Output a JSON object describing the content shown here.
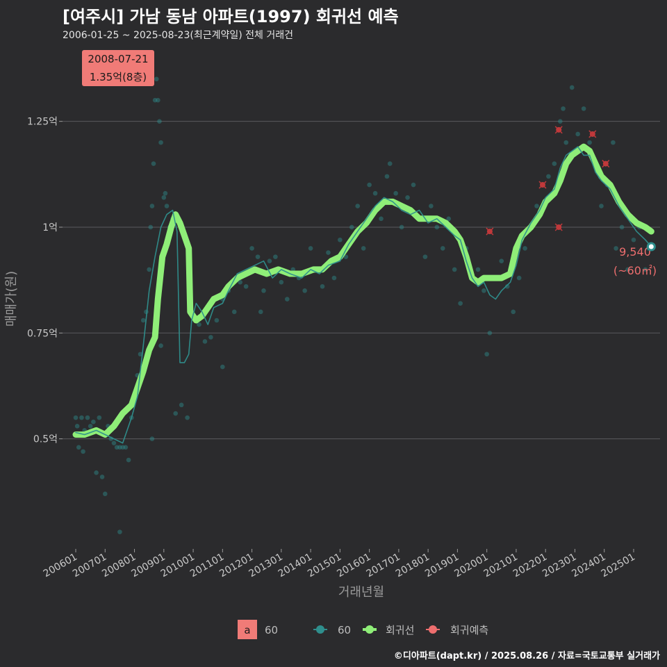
{
  "chart_data": {
    "type": "scatter",
    "title": "[여주시] 가남 동남 아파트(1997) 회귀선 예측",
    "subtitle": "2006-01-25 ~ 2025-08-23(최근계약일) 전체 거래건",
    "xlabel": "거래년월",
    "ylabel": "매매가(원)",
    "ylim_eok": [
      0.24,
      1.43
    ],
    "y_ticks": [
      {
        "value": 0.5,
        "label": "0.5억"
      },
      {
        "value": 0.75,
        "label": "0.75억"
      },
      {
        "value": 1.0,
        "label": "1억"
      },
      {
        "value": 1.25,
        "label": "1.25억"
      }
    ],
    "x_ticks": [
      "200601",
      "200701",
      "200801",
      "200901",
      "201001",
      "201101",
      "201201",
      "201301",
      "201401",
      "201501",
      "201601",
      "201701",
      "201801",
      "201901",
      "202001",
      "202101",
      "202201",
      "202301",
      "202401",
      "202501"
    ],
    "x_range_years": [
      2005.55,
      2025.9
    ],
    "series": [
      {
        "name": "회귀선",
        "color": "#8fee78",
        "points": [
          [
            2006.0,
            0.51
          ],
          [
            2006.3,
            0.51
          ],
          [
            2006.7,
            0.52
          ],
          [
            2007.0,
            0.51
          ],
          [
            2007.3,
            0.53
          ],
          [
            2007.6,
            0.56
          ],
          [
            2007.9,
            0.58
          ],
          [
            2008.1,
            0.62
          ],
          [
            2008.3,
            0.66
          ],
          [
            2008.5,
            0.71
          ],
          [
            2008.7,
            0.74
          ],
          [
            2008.8,
            0.83
          ],
          [
            2008.95,
            0.93
          ],
          [
            2009.1,
            0.96
          ],
          [
            2009.25,
            1.0
          ],
          [
            2009.4,
            1.03
          ],
          [
            2009.55,
            1.01
          ],
          [
            2009.7,
            0.98
          ],
          [
            2009.85,
            0.95
          ],
          [
            2009.9,
            0.8
          ],
          [
            2010.1,
            0.78
          ],
          [
            2010.3,
            0.79
          ],
          [
            2010.5,
            0.81
          ],
          [
            2010.7,
            0.83
          ],
          [
            2011.0,
            0.84
          ],
          [
            2011.2,
            0.86
          ],
          [
            2011.5,
            0.88
          ],
          [
            2011.8,
            0.89
          ],
          [
            2012.1,
            0.9
          ],
          [
            2012.5,
            0.89
          ],
          [
            2012.9,
            0.9
          ],
          [
            2013.3,
            0.89
          ],
          [
            2013.7,
            0.89
          ],
          [
            2014.1,
            0.9
          ],
          [
            2014.4,
            0.9
          ],
          [
            2014.7,
            0.92
          ],
          [
            2015.0,
            0.93
          ],
          [
            2015.3,
            0.96
          ],
          [
            2015.6,
            0.99
          ],
          [
            2015.9,
            1.01
          ],
          [
            2016.2,
            1.04
          ],
          [
            2016.5,
            1.06
          ],
          [
            2016.8,
            1.06
          ],
          [
            2017.1,
            1.05
          ],
          [
            2017.4,
            1.04
          ],
          [
            2017.7,
            1.02
          ],
          [
            2018.0,
            1.02
          ],
          [
            2018.3,
            1.02
          ],
          [
            2018.6,
            1.01
          ],
          [
            2018.9,
            0.99
          ],
          [
            2019.1,
            0.97
          ],
          [
            2019.3,
            0.93
          ],
          [
            2019.5,
            0.88
          ],
          [
            2019.7,
            0.87
          ],
          [
            2019.9,
            0.88
          ],
          [
            2020.2,
            0.88
          ],
          [
            2020.5,
            0.88
          ],
          [
            2020.8,
            0.89
          ],
          [
            2021.0,
            0.95
          ],
          [
            2021.2,
            0.98
          ],
          [
            2021.5,
            1.0
          ],
          [
            2021.8,
            1.03
          ],
          [
            2022.0,
            1.06
          ],
          [
            2022.3,
            1.08
          ],
          [
            2022.5,
            1.11
          ],
          [
            2022.7,
            1.15
          ],
          [
            2022.9,
            1.17
          ],
          [
            2023.1,
            1.18
          ],
          [
            2023.3,
            1.19
          ],
          [
            2023.5,
            1.18
          ],
          [
            2023.7,
            1.15
          ],
          [
            2023.9,
            1.12
          ],
          [
            2024.2,
            1.1
          ],
          [
            2024.5,
            1.06
          ],
          [
            2024.8,
            1.03
          ],
          [
            2025.1,
            1.01
          ],
          [
            2025.4,
            1.0
          ],
          [
            2025.6,
            0.99
          ]
        ]
      },
      {
        "name": "60",
        "color": "#2f8f8d",
        "points": [
          [
            2006.0,
            0.515
          ],
          [
            2006.3,
            0.51
          ],
          [
            2006.7,
            0.52
          ],
          [
            2007.0,
            0.51
          ],
          [
            2007.3,
            0.5
          ],
          [
            2007.6,
            0.49
          ],
          [
            2007.9,
            0.55
          ],
          [
            2008.1,
            0.6
          ],
          [
            2008.3,
            0.72
          ],
          [
            2008.5,
            0.85
          ],
          [
            2008.7,
            0.93
          ],
          [
            2008.9,
            1.0
          ],
          [
            2009.1,
            1.03
          ],
          [
            2009.3,
            1.04
          ],
          [
            2009.45,
            0.99
          ],
          [
            2009.55,
            0.68
          ],
          [
            2009.7,
            0.68
          ],
          [
            2009.85,
            0.7
          ],
          [
            2009.95,
            0.78
          ],
          [
            2010.1,
            0.82
          ],
          [
            2010.3,
            0.8
          ],
          [
            2010.5,
            0.77
          ],
          [
            2010.7,
            0.81
          ],
          [
            2011.0,
            0.82
          ],
          [
            2011.2,
            0.85
          ],
          [
            2011.5,
            0.89
          ],
          [
            2011.8,
            0.9
          ],
          [
            2012.1,
            0.91
          ],
          [
            2012.4,
            0.92
          ],
          [
            2012.7,
            0.88
          ],
          [
            2013.0,
            0.9
          ],
          [
            2013.3,
            0.89
          ],
          [
            2013.7,
            0.88
          ],
          [
            2014.0,
            0.9
          ],
          [
            2014.3,
            0.89
          ],
          [
            2014.6,
            0.91
          ],
          [
            2015.0,
            0.92
          ],
          [
            2015.3,
            0.96
          ],
          [
            2015.6,
            0.99
          ],
          [
            2015.9,
            1.02
          ],
          [
            2016.2,
            1.05
          ],
          [
            2016.5,
            1.07
          ],
          [
            2016.8,
            1.06
          ],
          [
            2017.1,
            1.04
          ],
          [
            2017.4,
            1.03
          ],
          [
            2017.7,
            1.04
          ],
          [
            2018.0,
            1.01
          ],
          [
            2018.3,
            1.02
          ],
          [
            2018.6,
            1.0
          ],
          [
            2018.9,
            0.98
          ],
          [
            2019.1,
            0.97
          ],
          [
            2019.3,
            0.92
          ],
          [
            2019.5,
            0.88
          ],
          [
            2019.7,
            0.86
          ],
          [
            2019.9,
            0.87
          ],
          [
            2020.1,
            0.84
          ],
          [
            2020.3,
            0.83
          ],
          [
            2020.5,
            0.85
          ],
          [
            2020.8,
            0.87
          ],
          [
            2021.0,
            0.91
          ],
          [
            2021.2,
            0.97
          ],
          [
            2021.5,
            1.01
          ],
          [
            2021.8,
            1.04
          ],
          [
            2022.0,
            1.07
          ],
          [
            2022.3,
            1.09
          ],
          [
            2022.5,
            1.14
          ],
          [
            2022.7,
            1.17
          ],
          [
            2022.9,
            1.18
          ],
          [
            2023.1,
            1.19
          ],
          [
            2023.3,
            1.17
          ],
          [
            2023.5,
            1.17
          ],
          [
            2023.7,
            1.13
          ],
          [
            2023.9,
            1.11
          ],
          [
            2024.2,
            1.09
          ],
          [
            2024.5,
            1.05
          ],
          [
            2024.8,
            1.02
          ],
          [
            2025.1,
            0.99
          ],
          [
            2025.4,
            0.97
          ],
          [
            2025.6,
            0.954
          ]
        ]
      }
    ],
    "scatter_points": [
      [
        2006.0,
        0.55
      ],
      [
        2006.05,
        0.53
      ],
      [
        2006.1,
        0.48
      ],
      [
        2006.2,
        0.55
      ],
      [
        2006.25,
        0.47
      ],
      [
        2006.3,
        0.52
      ],
      [
        2006.4,
        0.55
      ],
      [
        2006.5,
        0.53
      ],
      [
        2006.6,
        0.54
      ],
      [
        2006.7,
        0.42
      ],
      [
        2006.8,
        0.55
      ],
      [
        2006.9,
        0.41
      ],
      [
        2007.0,
        0.37
      ],
      [
        2007.1,
        0.53
      ],
      [
        2007.2,
        0.5
      ],
      [
        2007.3,
        0.49
      ],
      [
        2007.4,
        0.48
      ],
      [
        2007.5,
        0.48
      ],
      [
        2007.6,
        0.48
      ],
      [
        2007.7,
        0.48
      ],
      [
        2007.8,
        0.45
      ],
      [
        2007.5,
        0.28
      ],
      [
        2007.9,
        0.55
      ],
      [
        2008.0,
        0.6
      ],
      [
        2008.1,
        0.65
      ],
      [
        2008.2,
        0.7
      ],
      [
        2008.3,
        0.78
      ],
      [
        2008.4,
        0.8
      ],
      [
        2008.5,
        0.9
      ],
      [
        2008.55,
        1.0
      ],
      [
        2008.6,
        1.05
      ],
      [
        2008.65,
        1.15
      ],
      [
        2008.7,
        1.3
      ],
      [
        2008.75,
        1.35
      ],
      [
        2008.8,
        1.3
      ],
      [
        2008.85,
        1.25
      ],
      [
        2008.9,
        1.2
      ],
      [
        2009.0,
        1.07
      ],
      [
        2009.05,
        1.08
      ],
      [
        2009.1,
        1.05
      ],
      [
        2009.2,
        1.0
      ],
      [
        2009.3,
        1.02
      ],
      [
        2009.4,
        0.56
      ],
      [
        2009.6,
        0.58
      ],
      [
        2009.8,
        0.55
      ],
      [
        2008.9,
        0.72
      ],
      [
        2008.6,
        0.5
      ],
      [
        2010.2,
        0.77
      ],
      [
        2010.4,
        0.73
      ],
      [
        2010.6,
        0.74
      ],
      [
        2010.8,
        0.78
      ],
      [
        2011.0,
        0.83
      ],
      [
        2011.0,
        0.67
      ],
      [
        2011.2,
        0.85
      ],
      [
        2011.4,
        0.8
      ],
      [
        2011.6,
        0.87
      ],
      [
        2011.8,
        0.86
      ],
      [
        2012.0,
        0.95
      ],
      [
        2012.2,
        0.93
      ],
      [
        2012.3,
        0.8
      ],
      [
        2012.4,
        0.85
      ],
      [
        2012.6,
        0.92
      ],
      [
        2012.8,
        0.93
      ],
      [
        2013.0,
        0.87
      ],
      [
        2013.2,
        0.83
      ],
      [
        2013.4,
        0.9
      ],
      [
        2013.6,
        0.88
      ],
      [
        2013.8,
        0.85
      ],
      [
        2014.0,
        0.95
      ],
      [
        2014.2,
        0.9
      ],
      [
        2014.4,
        0.86
      ],
      [
        2014.6,
        0.94
      ],
      [
        2014.8,
        0.88
      ],
      [
        2015.0,
        0.97
      ],
      [
        2015.2,
        0.93
      ],
      [
        2015.4,
        1.0
      ],
      [
        2015.6,
        1.05
      ],
      [
        2015.8,
        0.95
      ],
      [
        2016.0,
        1.1
      ],
      [
        2016.2,
        1.08
      ],
      [
        2016.4,
        1.02
      ],
      [
        2016.6,
        1.12
      ],
      [
        2016.7,
        1.15
      ],
      [
        2016.9,
        1.08
      ],
      [
        2017.1,
        1.0
      ],
      [
        2017.3,
        1.07
      ],
      [
        2017.5,
        1.1
      ],
      [
        2017.7,
        1.02
      ],
      [
        2017.9,
        0.93
      ],
      [
        2018.1,
        1.05
      ],
      [
        2018.3,
        1.0
      ],
      [
        2018.5,
        0.95
      ],
      [
        2018.7,
        1.02
      ],
      [
        2018.9,
        0.9
      ],
      [
        2019.1,
        0.82
      ],
      [
        2019.3,
        0.95
      ],
      [
        2019.5,
        0.88
      ],
      [
        2019.7,
        0.9
      ],
      [
        2019.9,
        0.85
      ],
      [
        2020.0,
        0.7
      ],
      [
        2020.1,
        0.75
      ],
      [
        2020.3,
        0.88
      ],
      [
        2020.5,
        0.92
      ],
      [
        2020.7,
        0.86
      ],
      [
        2020.9,
        0.8
      ],
      [
        2021.1,
        0.88
      ],
      [
        2021.3,
        0.95
      ],
      [
        2021.5,
        1.0
      ],
      [
        2021.7,
        1.05
      ],
      [
        2021.9,
        1.1
      ],
      [
        2022.1,
        1.12
      ],
      [
        2022.3,
        1.15
      ],
      [
        2022.5,
        1.25
      ],
      [
        2022.6,
        1.28
      ],
      [
        2022.7,
        1.2
      ],
      [
        2022.9,
        1.33
      ],
      [
        2023.1,
        1.22
      ],
      [
        2023.3,
        1.28
      ],
      [
        2023.5,
        1.2
      ],
      [
        2023.7,
        1.15
      ],
      [
        2023.9,
        1.05
      ],
      [
        2024.1,
        1.1
      ],
      [
        2024.3,
        1.2
      ],
      [
        2024.4,
        0.95
      ],
      [
        2024.6,
        1.0
      ],
      [
        2024.8,
        0.9
      ],
      [
        2025.0,
        0.97
      ],
      [
        2025.2,
        1.0
      ],
      [
        2025.4,
        0.9
      ],
      [
        2025.5,
        0.95
      ]
    ],
    "prediction_points": [
      [
        2020.1,
        0.99
      ],
      [
        2021.9,
        1.1
      ],
      [
        2022.45,
        1.0
      ],
      [
        2022.45,
        1.23
      ],
      [
        2023.6,
        1.22
      ],
      [
        2024.05,
        1.15
      ]
    ],
    "last_point": {
      "x": 2025.6,
      "y": 0.954,
      "price_label": "9,540",
      "area_label": "(~60㎡)"
    },
    "max_annotation": {
      "x": 2008.7,
      "date": "2008-07-21",
      "price": "1.35억(8층)"
    },
    "legend": {
      "area_box": "a",
      "area_label": "60",
      "series_60": "60",
      "regression": "회귀선",
      "prediction": "회귀예측"
    }
  },
  "caption": "©디아파트(dapt.kr) / 2025.08.26 / 자료=국토교통부 실거래가",
  "colors": {
    "background": "#2b2b2d",
    "regression": "#8fee78",
    "series": "#2f8f8d",
    "prediction": "#c0393b",
    "annotation_bg": "#f07b77",
    "label": "#ee6e6e"
  }
}
